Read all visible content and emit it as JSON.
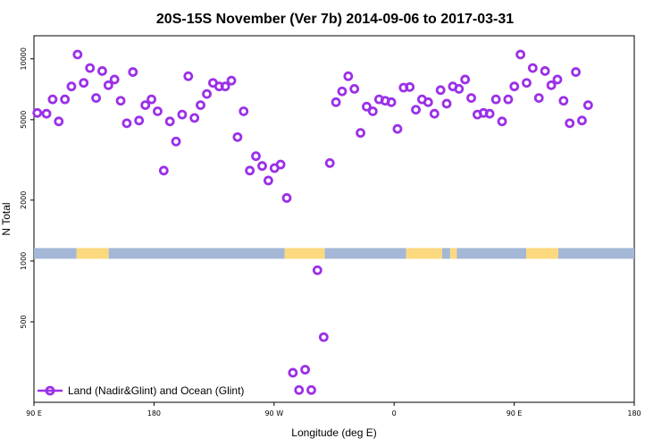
{
  "chart_data": {
    "type": "scatter",
    "title": "20S-15S November (Ver 7b)   2014-09-06 to 2017-03-31",
    "xlabel": "Longitude (deg E)",
    "ylabel": "N Total",
    "y_scale": "log",
    "xlim": [
      90,
      540
    ],
    "ylim": [
      200,
      13000
    ],
    "x_ticks": [
      {
        "value": 90,
        "label": "90 E"
      },
      {
        "value": 180,
        "label": "180"
      },
      {
        "value": 270,
        "label": "90 W"
      },
      {
        "value": 360,
        "label": "0"
      },
      {
        "value": 450,
        "label": "90 E"
      },
      {
        "value": 540,
        "label": "180"
      }
    ],
    "y_ticks": [
      {
        "value": 500,
        "label": "500"
      },
      {
        "value": 1000,
        "label": "1000"
      },
      {
        "value": 2000,
        "label": "2000"
      },
      {
        "value": 5000,
        "label": "5000"
      },
      {
        "value": 10000,
        "label": "10000"
      }
    ],
    "series": [
      {
        "name": "Land (Nadir&Glint) and Ocean (Glint)",
        "color": "#9b30e8",
        "points": [
          [
            92.5,
            5400
          ],
          [
            99.4,
            5350
          ],
          [
            104.0,
            6300
          ],
          [
            108.6,
            4900
          ],
          [
            113.2,
            6300
          ],
          [
            118.1,
            7300
          ],
          [
            122.7,
            10500
          ],
          [
            127.3,
            7600
          ],
          [
            132.0,
            9000
          ],
          [
            136.6,
            6400
          ],
          [
            141.2,
            8700
          ],
          [
            145.8,
            7400
          ],
          [
            150.4,
            7900
          ],
          [
            155.0,
            6200
          ],
          [
            159.6,
            4800
          ],
          [
            164.2,
            8600
          ],
          [
            168.8,
            4950
          ],
          [
            173.5,
            5900
          ],
          [
            178.1,
            6300
          ],
          [
            182.7,
            5500
          ],
          [
            187.3,
            2800
          ],
          [
            191.9,
            4900
          ],
          [
            196.5,
            3900
          ],
          [
            201.1,
            5300
          ],
          [
            205.7,
            8200
          ],
          [
            210.3,
            5100
          ],
          [
            214.9,
            5900
          ],
          [
            219.6,
            6700
          ],
          [
            224.2,
            7600
          ],
          [
            228.8,
            7300
          ],
          [
            233.4,
            7300
          ],
          [
            238.0,
            7800
          ],
          [
            242.6,
            4100
          ],
          [
            247.2,
            5500
          ],
          [
            251.8,
            2800
          ],
          [
            256.4,
            3300
          ],
          [
            261.1,
            2950
          ],
          [
            265.7,
            2500
          ],
          [
            270.3,
            2880
          ],
          [
            274.9,
            3000
          ],
          [
            279.5,
            2050
          ],
          [
            284.1,
            280
          ],
          [
            288.7,
            230
          ],
          [
            293.3,
            290
          ],
          [
            297.9,
            230
          ],
          [
            302.5,
            900
          ],
          [
            307.2,
            420
          ],
          [
            311.8,
            3050
          ],
          [
            316.4,
            6100
          ],
          [
            321.0,
            6900
          ],
          [
            325.6,
            8200
          ],
          [
            330.2,
            7100
          ],
          [
            334.8,
            4300
          ],
          [
            339.4,
            5800
          ],
          [
            344.0,
            5500
          ],
          [
            348.7,
            6300
          ],
          [
            353.3,
            6200
          ],
          [
            357.9,
            6100
          ],
          [
            362.5,
            4500
          ],
          [
            367.1,
            7200
          ],
          [
            371.7,
            7250
          ],
          [
            376.3,
            5600
          ],
          [
            380.9,
            6300
          ],
          [
            385.5,
            6100
          ],
          [
            390.2,
            5350
          ],
          [
            394.8,
            7000
          ],
          [
            399.4,
            6000
          ],
          [
            404.0,
            7300
          ],
          [
            408.6,
            7100
          ],
          [
            413.2,
            7900
          ],
          [
            417.8,
            6400
          ],
          [
            422.4,
            5300
          ],
          [
            427.0,
            5400
          ],
          [
            431.6,
            5350
          ],
          [
            436.3,
            6300
          ],
          [
            440.9,
            4900
          ],
          [
            445.5,
            6300
          ],
          [
            450.1,
            7300
          ],
          [
            454.7,
            10500
          ],
          [
            459.3,
            7600
          ],
          [
            463.9,
            9000
          ],
          [
            468.5,
            6400
          ],
          [
            473.1,
            8700
          ],
          [
            477.8,
            7400
          ],
          [
            482.4,
            7900
          ],
          [
            487.0,
            6200
          ],
          [
            491.6,
            4800
          ],
          [
            496.2,
            8600
          ],
          [
            500.8,
            4950
          ],
          [
            505.4,
            5900
          ]
        ]
      }
    ],
    "surface_band": {
      "y_value": 1090,
      "segments": [
        {
          "surface": "ocean",
          "color": "#a4b7d6",
          "x_from": 90,
          "x_to": 122
        },
        {
          "surface": "land",
          "color": "#fcd97e",
          "x_from": 122,
          "x_to": 146
        },
        {
          "surface": "ocean",
          "color": "#a4b7d6",
          "x_from": 146,
          "x_to": 278
        },
        {
          "surface": "land",
          "color": "#fcd97e",
          "x_from": 278,
          "x_to": 308
        },
        {
          "surface": "ocean",
          "color": "#a4b7d6",
          "x_from": 308,
          "x_to": 369
        },
        {
          "surface": "land",
          "color": "#fcd97e",
          "x_from": 369,
          "x_to": 396
        },
        {
          "surface": "ocean",
          "color": "#a4b7d6",
          "x_from": 396,
          "x_to": 402
        },
        {
          "surface": "land",
          "color": "#fcd97e",
          "x_from": 402,
          "x_to": 407
        },
        {
          "surface": "ocean",
          "color": "#a4b7d6",
          "x_from": 407,
          "x_to": 459
        },
        {
          "surface": "land",
          "color": "#fcd97e",
          "x_from": 459,
          "x_to": 483
        },
        {
          "surface": "ocean",
          "color": "#a4b7d6",
          "x_from": 483,
          "x_to": 540
        }
      ]
    },
    "legend": {
      "position": "bottom-left",
      "label": "Land (Nadir&Glint) and Ocean (Glint)"
    },
    "grid": false
  }
}
